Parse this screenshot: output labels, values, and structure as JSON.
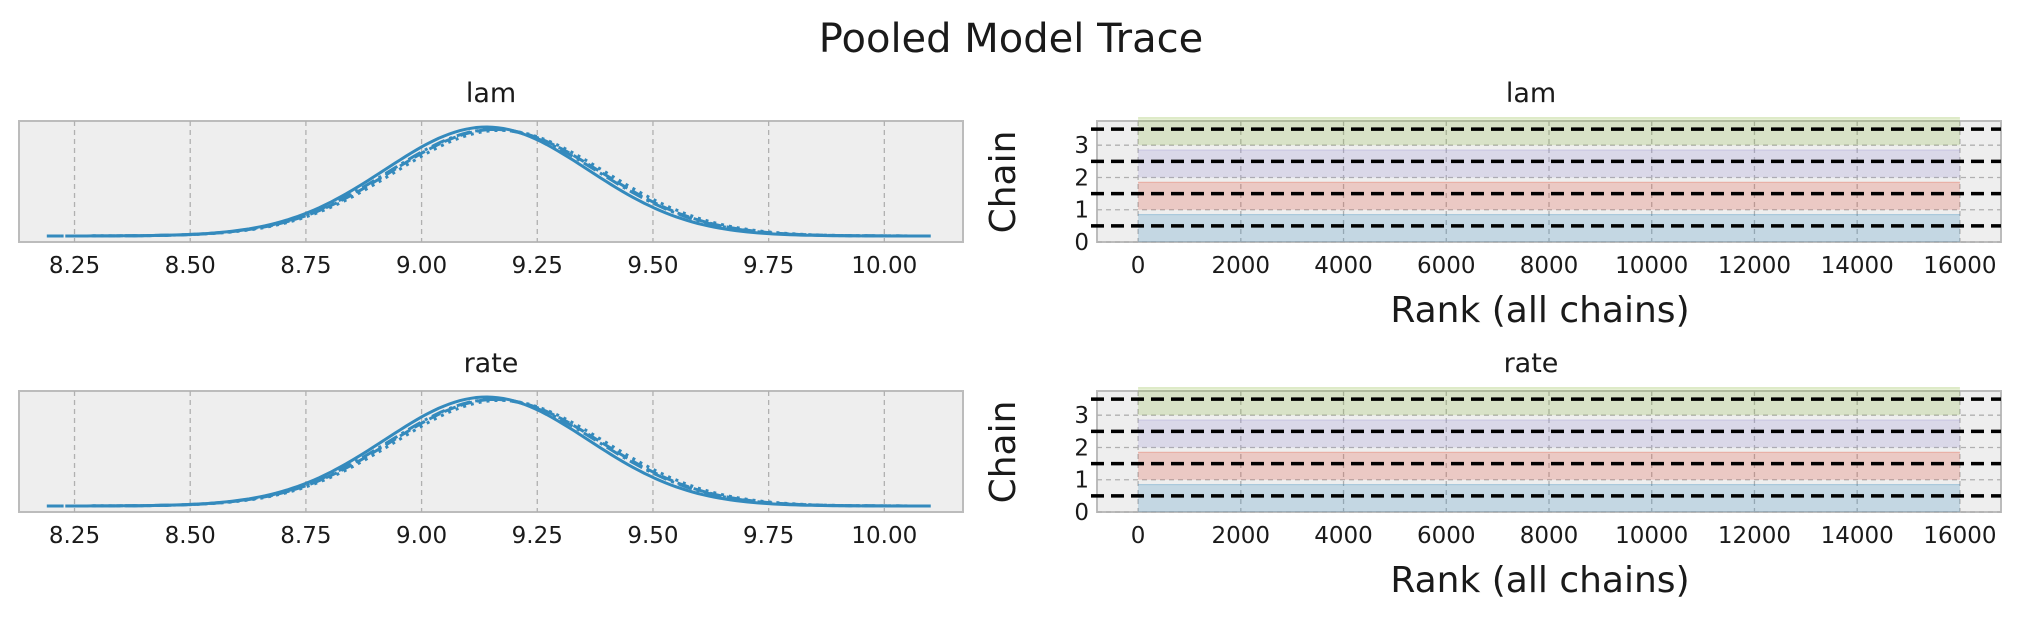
{
  "figure": {
    "title": "Pooled Model Trace"
  },
  "colors": {
    "kde_line": "#348ABD",
    "chain_0": "#348ABD",
    "chain_1": "#E24A33",
    "chain_2": "#988ED5",
    "chain_3": "#8EBA42",
    "chain_boundary": "#000000",
    "panel_background": "#eeeeee"
  },
  "chart_data": [
    {
      "type": "line",
      "subtype": "kde",
      "title": "lam",
      "xlabel": "",
      "ylabel": "",
      "xlim": [
        8.13,
        10.17
      ],
      "xticks": [
        "8.25",
        "8.50",
        "8.75",
        "9.00",
        "9.25",
        "9.50",
        "9.75",
        "10.00"
      ],
      "xtick_values": [
        8.25,
        8.5,
        8.75,
        9.0,
        9.25,
        9.5,
        9.75,
        10.0
      ],
      "grid": true,
      "series": [
        {
          "line_style": "solid",
          "mean": 9.14,
          "sd": 0.22,
          "x_range": [
            8.23,
            10.1
          ]
        },
        {
          "line_style": "dashed",
          "mean": 9.16,
          "sd": 0.225,
          "x_range": [
            8.25,
            10.1
          ]
        },
        {
          "line_style": "dashdot",
          "mean": 9.155,
          "sd": 0.225,
          "x_range": [
            8.19,
            10.08
          ]
        },
        {
          "line_style": "dotted",
          "mean": 9.17,
          "sd": 0.227,
          "x_range": [
            8.22,
            10.1
          ]
        }
      ]
    },
    {
      "type": "bar",
      "subtype": "rank",
      "title": "lam",
      "xlabel": "Rank (all chains)",
      "ylabel": "Chain",
      "xlim": [
        -800,
        16800
      ],
      "ylim": [
        0,
        3.75
      ],
      "xticks": [
        "0",
        "2000",
        "4000",
        "6000",
        "8000",
        "10000",
        "12000",
        "14000",
        "16000"
      ],
      "xtick_values": [
        0,
        2000,
        4000,
        6000,
        8000,
        10000,
        12000,
        14000,
        16000
      ],
      "yticks": [
        "0",
        "1",
        "2",
        "3"
      ],
      "ytick_values": [
        0,
        1,
        2,
        3
      ],
      "chains": [
        0,
        1,
        2,
        3
      ],
      "rank_range": [
        0,
        16000
      ],
      "grid": true
    },
    {
      "type": "line",
      "subtype": "kde",
      "title": "rate",
      "xlabel": "",
      "ylabel": "",
      "xlim": [
        8.13,
        10.17
      ],
      "xticks": [
        "8.25",
        "8.50",
        "8.75",
        "9.00",
        "9.25",
        "9.50",
        "9.75",
        "10.00"
      ],
      "xtick_values": [
        8.25,
        8.5,
        8.75,
        9.0,
        9.25,
        9.5,
        9.75,
        10.0
      ],
      "grid": true,
      "series": [
        {
          "line_style": "solid",
          "mean": 9.14,
          "sd": 0.22,
          "x_range": [
            8.23,
            10.1
          ]
        },
        {
          "line_style": "dashed",
          "mean": 9.16,
          "sd": 0.225,
          "x_range": [
            8.25,
            10.1
          ]
        },
        {
          "line_style": "dashdot",
          "mean": 9.155,
          "sd": 0.225,
          "x_range": [
            8.19,
            10.08
          ]
        },
        {
          "line_style": "dotted",
          "mean": 9.17,
          "sd": 0.227,
          "x_range": [
            8.22,
            10.1
          ]
        }
      ]
    },
    {
      "type": "bar",
      "subtype": "rank",
      "title": "rate",
      "xlabel": "Rank (all chains)",
      "ylabel": "Chain",
      "xlim": [
        -800,
        16800
      ],
      "ylim": [
        0,
        3.75
      ],
      "xticks": [
        "0",
        "2000",
        "4000",
        "6000",
        "8000",
        "10000",
        "12000",
        "14000",
        "16000"
      ],
      "xtick_values": [
        0,
        2000,
        4000,
        6000,
        8000,
        10000,
        12000,
        14000,
        16000
      ],
      "yticks": [
        "0",
        "1",
        "2",
        "3"
      ],
      "ytick_values": [
        0,
        1,
        2,
        3
      ],
      "chains": [
        0,
        1,
        2,
        3
      ],
      "rank_range": [
        0,
        16000
      ],
      "grid": true
    }
  ]
}
